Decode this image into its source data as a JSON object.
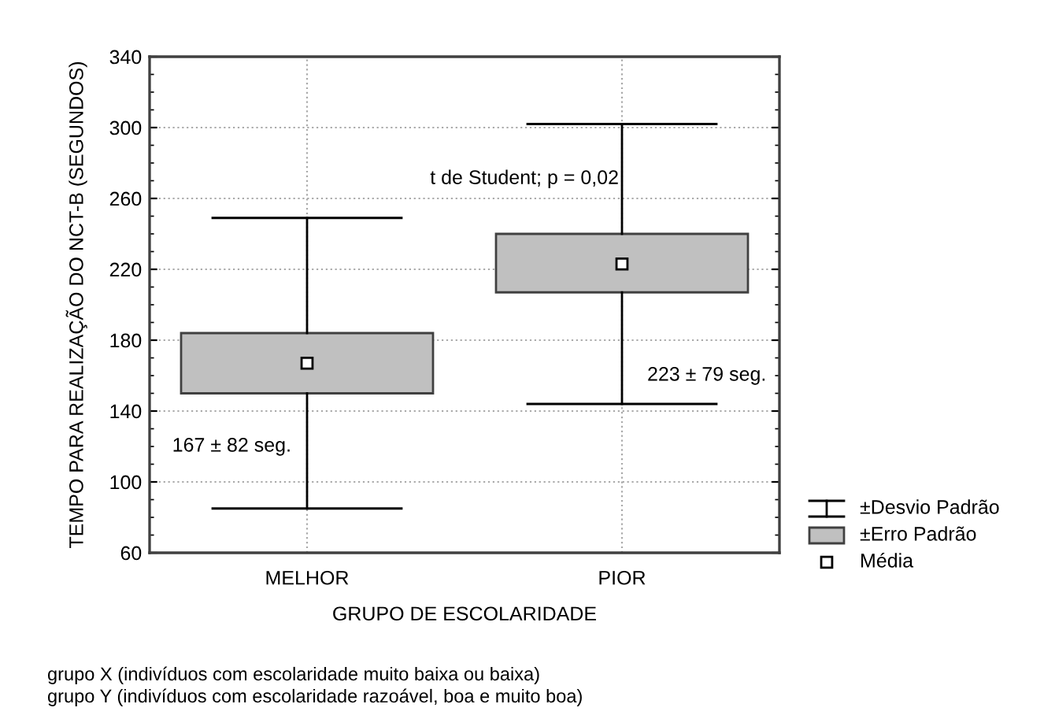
{
  "chart_data": {
    "type": "box",
    "xlabel": "GRUPO DE ESCOLARIDADE",
    "ylabel": "TEMPO PARA REALIZAÇÃO DO NCT-B (SEGUNDOS)",
    "categories": [
      "MELHOR",
      "PIOR"
    ],
    "boxes": [
      {
        "low": 85,
        "q1": 150,
        "q3": 184,
        "high": 249,
        "mean": 167
      },
      {
        "low": 144,
        "q1": 207,
        "q3": 240,
        "high": 302,
        "mean": 223
      }
    ],
    "ylim": [
      60,
      340
    ],
    "yticks": [
      60,
      100,
      140,
      180,
      220,
      260,
      300,
      340
    ],
    "grid": true,
    "annotations": [
      {
        "text": "167 ± 82 seg.",
        "x": "MELHOR",
        "y": 120
      },
      {
        "text": "223 ± 79 seg.",
        "x": "PIOR",
        "y": 160
      },
      {
        "text": "t de Student; p = 0,02",
        "x": "PIOR",
        "y": 271
      },
      "±Desvio Padrão",
      "±Erro Padrão",
      "Média",
      "grupo X (indivíduos com escolaridade muito baixa ou baixa)",
      "grupo Y (indivíduos com escolaridade razoável, boa e muito boa)"
    ]
  }
}
